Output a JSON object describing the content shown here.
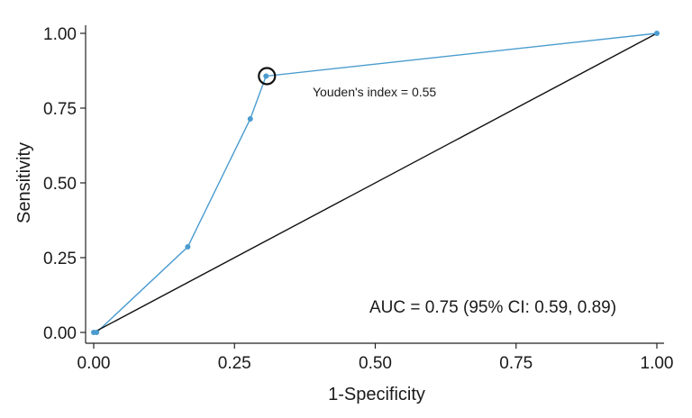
{
  "chart_data": {
    "type": "line",
    "title": "",
    "xlabel": "1-Specificity",
    "ylabel": "Sensitivity",
    "xlim": [
      0,
      1
    ],
    "ylim": [
      0,
      1
    ],
    "x_ticks": [
      "0.00",
      "0.25",
      "0.50",
      "0.75",
      "1.00"
    ],
    "y_ticks": [
      "0.00",
      "0.25",
      "0.50",
      "0.75",
      "1.00"
    ],
    "grid": false,
    "legend": "none",
    "series": [
      {
        "color": "#4a9ccf",
        "x": [
          0.0,
          0.005,
          0.167,
          0.278,
          0.306,
          1.0
        ],
        "y": [
          0.0,
          0.0,
          0.286,
          0.714,
          0.857,
          1.0
        ]
      },
      {
        "color": "#111111",
        "x": [
          0.0,
          1.0
        ],
        "y": [
          0.0,
          1.0
        ]
      }
    ],
    "highlight_point": {
      "x": 0.306,
      "y": 0.857
    },
    "annotations": {
      "youden": "Youden's index = 0.55",
      "auc": "AUC = 0.75 (95% CI: 0.59, 0.89)"
    }
  }
}
